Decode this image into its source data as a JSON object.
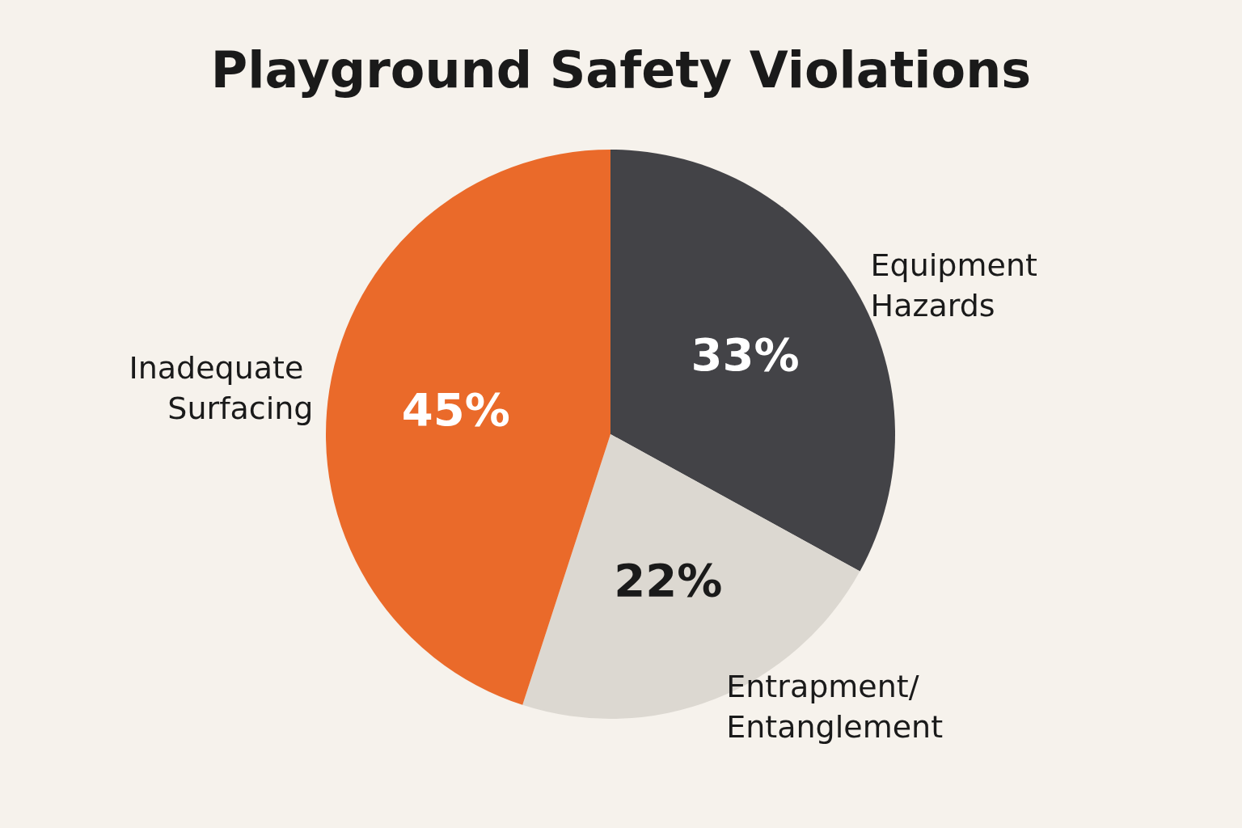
{
  "chart_data": {
    "type": "pie",
    "title": "Playground Safety Violations",
    "categories": [
      "Equipment Hazards",
      "Entrapment/ Entanglement",
      "Inadequate Surfacing"
    ],
    "values": [
      33,
      22,
      45
    ],
    "value_labels": [
      "33%",
      "22%",
      "45%"
    ],
    "colors": [
      "#434347",
      "#dcd8d1",
      "#ea6a2a"
    ],
    "legend": false
  }
}
